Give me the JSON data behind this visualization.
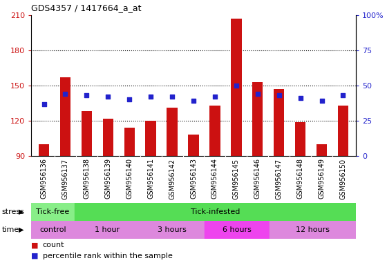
{
  "title": "GDS4357 / 1417664_a_at",
  "samples": [
    "GSM956136",
    "GSM956137",
    "GSM956138",
    "GSM956139",
    "GSM956140",
    "GSM956141",
    "GSM956142",
    "GSM956143",
    "GSM956144",
    "GSM956145",
    "GSM956146",
    "GSM956147",
    "GSM956148",
    "GSM956149",
    "GSM956150"
  ],
  "counts": [
    100,
    157,
    128,
    122,
    114,
    120,
    131,
    108,
    133,
    207,
    153,
    147,
    119,
    100,
    133
  ],
  "percentile_ranks": [
    37,
    44,
    43,
    42,
    40,
    42,
    42,
    39,
    42,
    50,
    44,
    43,
    41,
    39,
    43
  ],
  "ylim_left": [
    90,
    210
  ],
  "ylim_right": [
    0,
    100
  ],
  "yticks_left": [
    90,
    120,
    150,
    180,
    210
  ],
  "yticks_right": [
    0,
    25,
    50,
    75,
    100
  ],
  "ytick_right_labels": [
    "0",
    "25",
    "50",
    "75",
    "100%"
  ],
  "bar_color": "#cc1111",
  "dot_color": "#2222cc",
  "plot_bg_color": "#ffffff",
  "xticklabel_bg": "#cccccc",
  "stress_groups": [
    {
      "label": "Tick-free",
      "start": 0,
      "end": 2,
      "color": "#88ee88"
    },
    {
      "label": "Tick-infested",
      "start": 2,
      "end": 15,
      "color": "#55dd55"
    }
  ],
  "time_groups": [
    {
      "label": "control",
      "start": 0,
      "end": 2,
      "color": "#dd88dd"
    },
    {
      "label": "1 hour",
      "start": 2,
      "end": 5,
      "color": "#dd88dd"
    },
    {
      "label": "3 hours",
      "start": 5,
      "end": 8,
      "color": "#dd88dd"
    },
    {
      "label": "6 hours",
      "start": 8,
      "end": 11,
      "color": "#ee44ee"
    },
    {
      "label": "12 hours",
      "start": 11,
      "end": 15,
      "color": "#dd88dd"
    }
  ],
  "legend_count_label": "count",
  "legend_pct_label": "percentile rank within the sample",
  "stress_label": "stress",
  "time_label": "time"
}
